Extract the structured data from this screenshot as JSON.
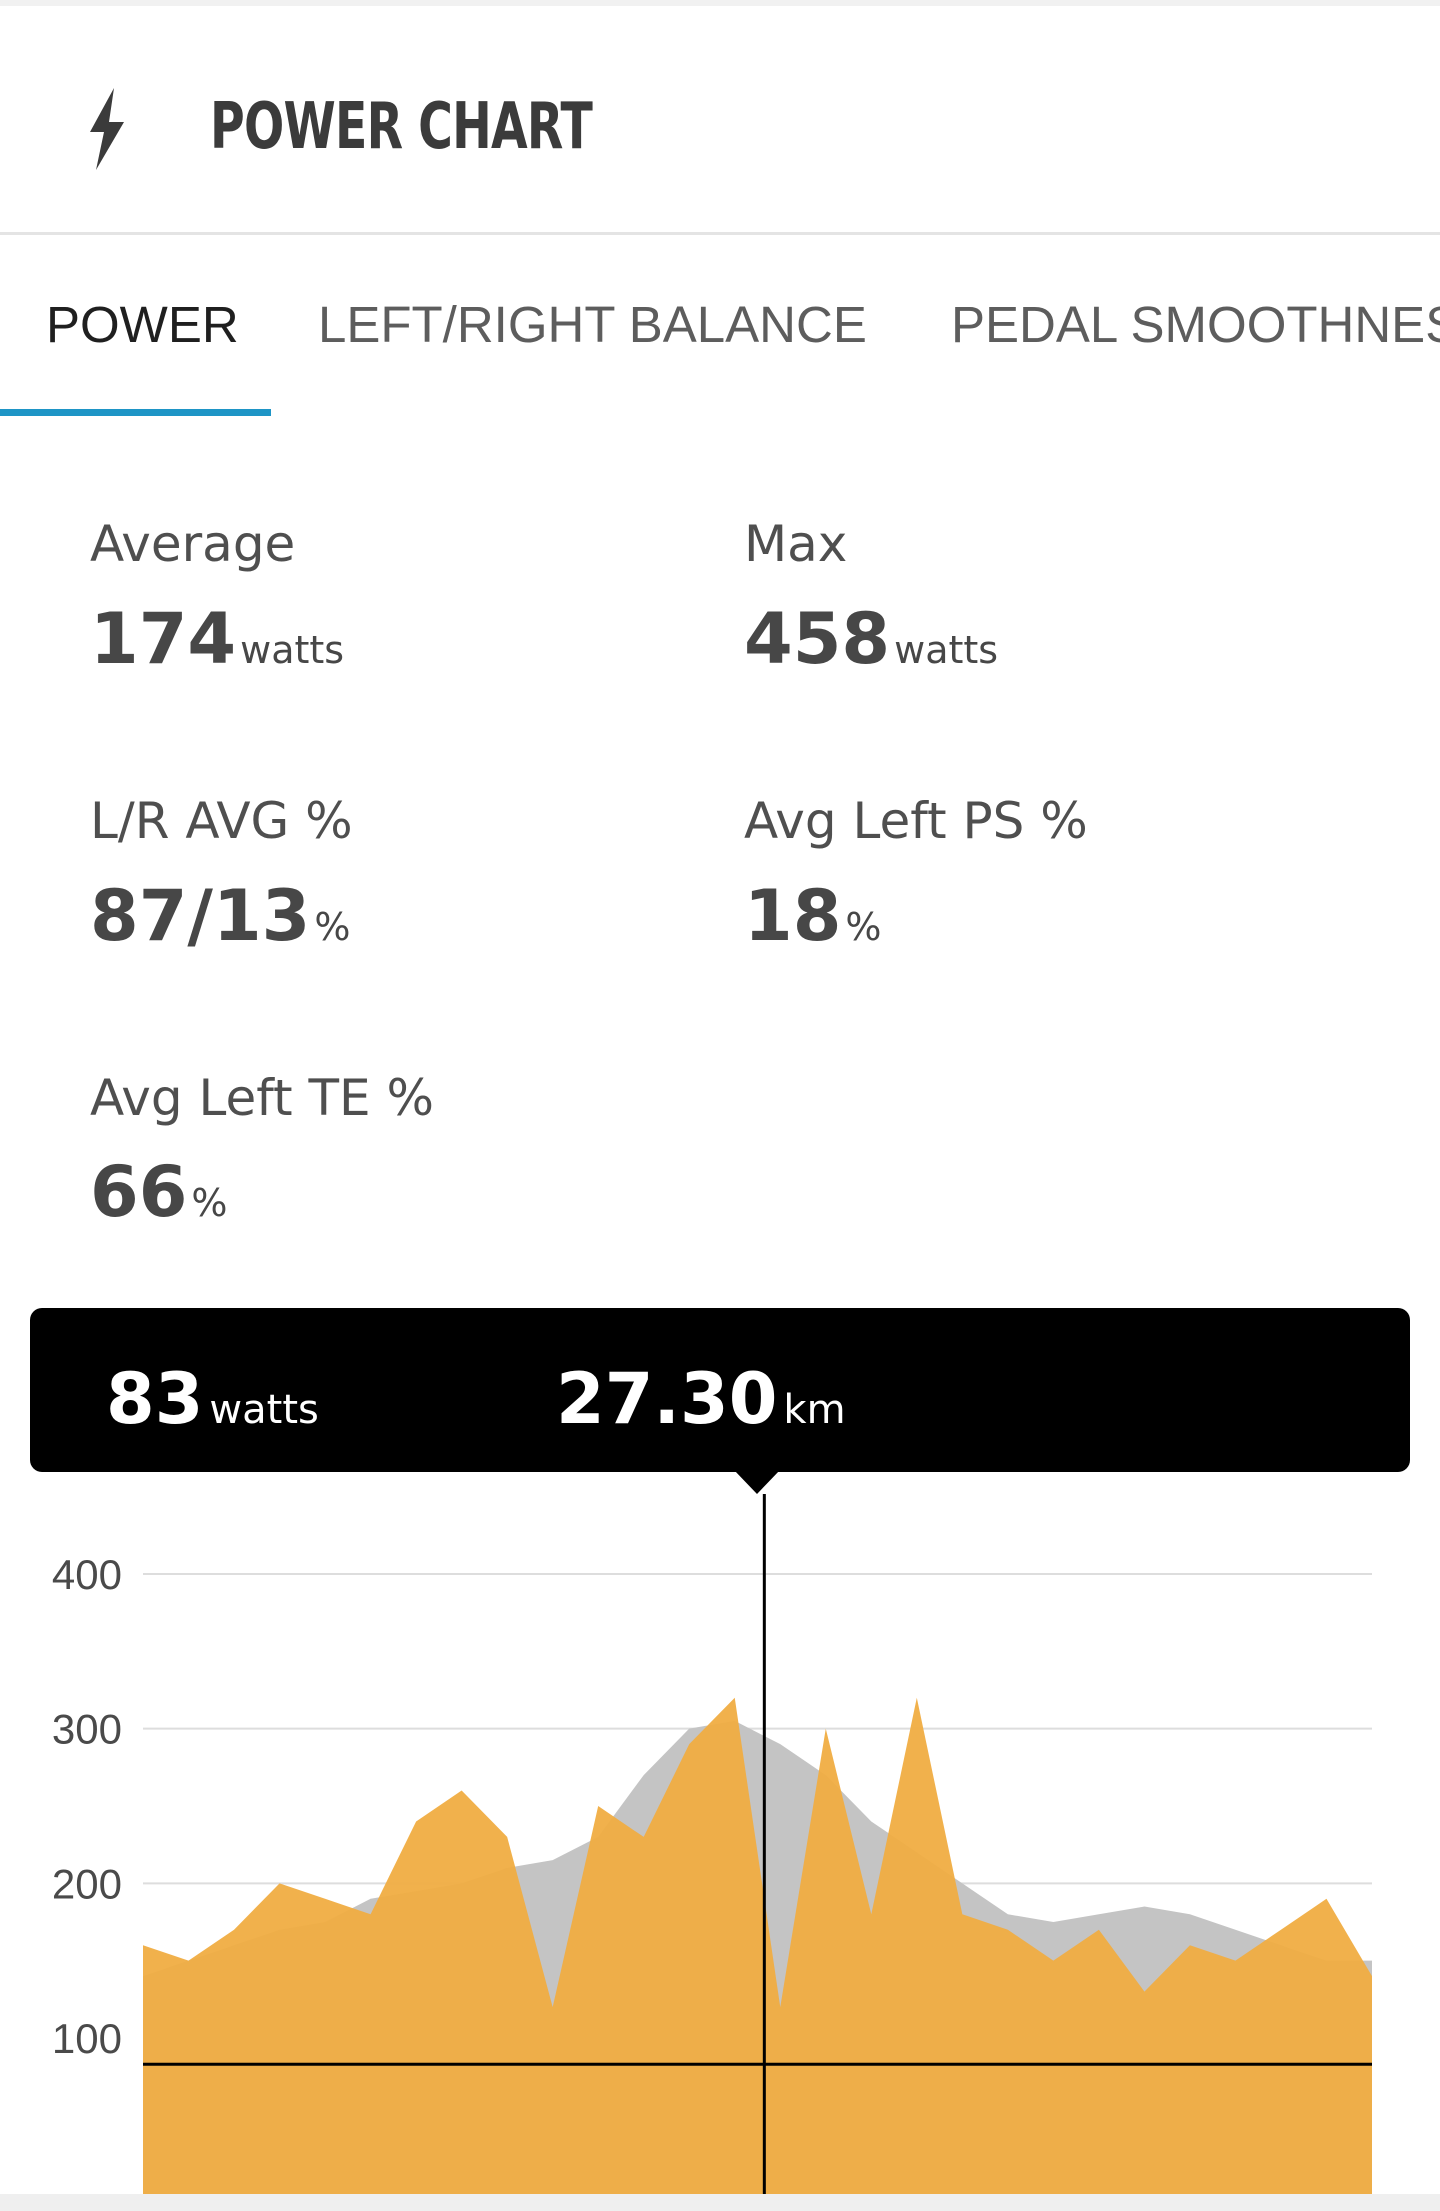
{
  "header": {
    "icon": "lightning-bolt-icon",
    "title": "POWER CHART"
  },
  "tabs": [
    {
      "label": "POWER",
      "active": true
    },
    {
      "label": "LEFT/RIGHT BALANCE",
      "active": false
    },
    {
      "label": "PEDAL SMOOTHNESS",
      "active": false
    }
  ],
  "stats": {
    "average": {
      "label": "Average",
      "value": "174",
      "unit": "watts"
    },
    "max": {
      "label": "Max",
      "value": "458",
      "unit": "watts"
    },
    "lr_avg": {
      "label": "L/R AVG %",
      "value": "87/13",
      "unit": "%"
    },
    "avg_left_ps": {
      "label": "Avg Left PS %",
      "value": "18",
      "unit": "%"
    },
    "avg_left_te": {
      "label": "Avg Left TE %",
      "value": "66",
      "unit": "%"
    }
  },
  "tooltip": {
    "power": {
      "value": "83",
      "unit": "watts"
    },
    "distance": {
      "value": "27.30",
      "unit": "km"
    }
  },
  "colors": {
    "accent": "#1e95c6",
    "power_fill": "#f0ad42",
    "elevation_fill": "#c4c4c4",
    "tooltip_bg": "#000000"
  },
  "chart_data": {
    "type": "area",
    "title": "",
    "xlabel": "",
    "ylabel": "",
    "ylim": [
      0,
      450
    ],
    "yticks": [
      100,
      200,
      300,
      400
    ],
    "grid": true,
    "x": [
      0,
      2,
      4,
      6,
      8,
      10,
      12,
      14,
      16,
      18,
      20,
      22,
      24,
      26,
      28,
      30,
      32,
      34,
      36,
      38,
      40,
      42,
      44,
      46,
      48,
      50,
      52,
      54
    ],
    "series": [
      {
        "values": [
          160,
          150,
          170,
          200,
          190,
          180,
          240,
          260,
          230,
          120,
          250,
          230,
          290,
          320,
          120,
          300,
          180,
          320,
          180,
          170,
          150,
          170,
          130,
          160,
          150,
          170,
          190,
          140
        ]
      },
      {
        "values": [
          140,
          150,
          160,
          170,
          175,
          190,
          195,
          200,
          210,
          215,
          230,
          270,
          300,
          305,
          290,
          270,
          240,
          220,
          200,
          180,
          175,
          180,
          185,
          180,
          170,
          160,
          150,
          150
        ]
      }
    ],
    "cursor": {
      "x": 27.3,
      "y": 83
    }
  }
}
